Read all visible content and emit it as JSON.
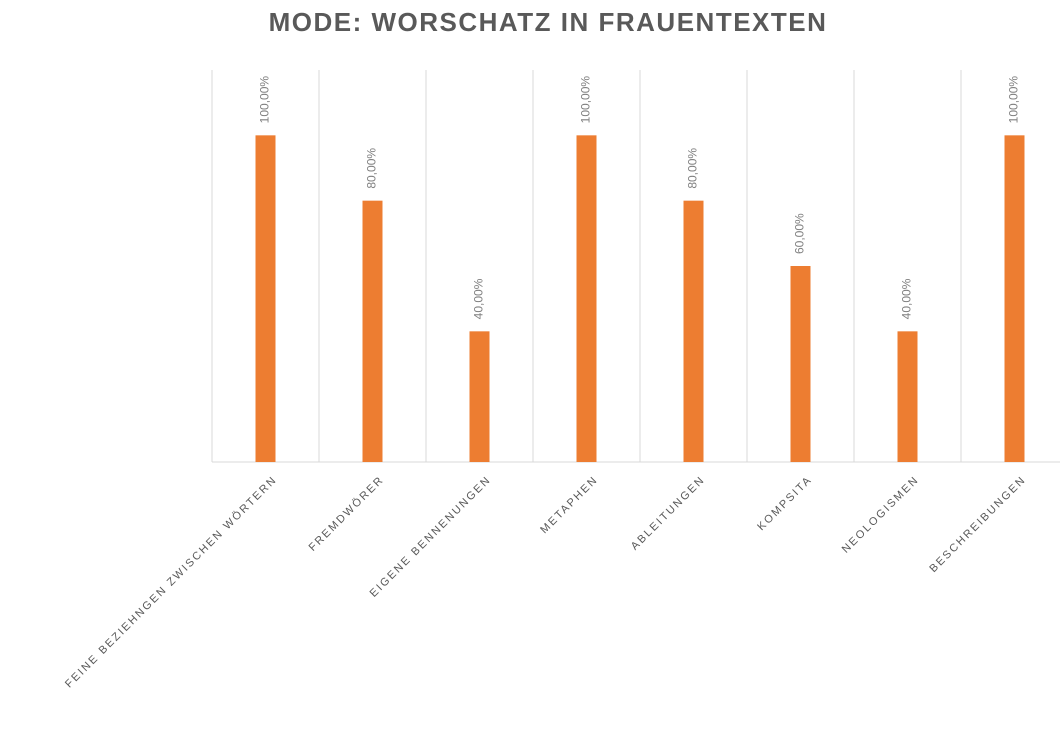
{
  "chart_data": {
    "type": "bar",
    "title": "MODE: WORSCHATZ IN FRAUENTEXTEN",
    "categories": [
      "FEINE BEZIEHNGEN ZWISCHEN WÖRTERN",
      "FREMDWÖRER",
      "EIGENE BENNENUNGEN",
      "METAPHEN",
      "ABLEITUNGEN",
      "KOMPSITA",
      "NEOLOGISMEN",
      "BESCHREIBUNGEN"
    ],
    "values": [
      100,
      80,
      40,
      100,
      80,
      60,
      40,
      100
    ],
    "value_labels": [
      "100,00%",
      "80,00%",
      "40,00%",
      "100,00%",
      "80,00%",
      "60,00%",
      "40,00%",
      "100,00%"
    ],
    "color": "#ed7d31",
    "ylim": [
      0,
      120
    ],
    "grid": true
  }
}
